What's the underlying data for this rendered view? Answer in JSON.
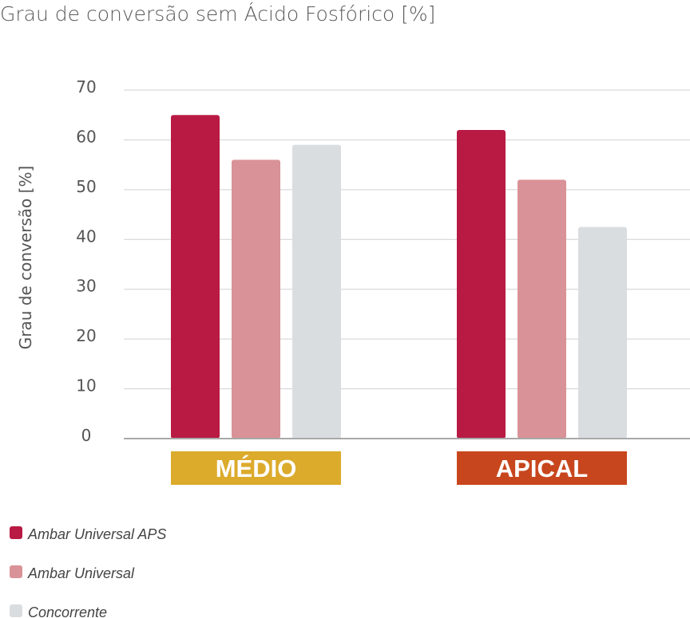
{
  "chart_data": {
    "type": "bar",
    "title": "Grau de conversão sem Ácido Fosfórico [%]",
    "ylabel": "Grau de conversão [%]",
    "xlabel": "",
    "ylim": [
      0,
      70
    ],
    "yticks": [
      0,
      10,
      20,
      30,
      40,
      50,
      60,
      70
    ],
    "grid": true,
    "categories": [
      "MÉDIO",
      "APICAL"
    ],
    "category_colors": [
      "#dcab2c",
      "#c8461d"
    ],
    "series": [
      {
        "name": "Ambar Universal APS",
        "color": "#b81a43",
        "values": [
          65,
          62
        ]
      },
      {
        "name": "Ambar Universal",
        "color": "#d99297",
        "values": [
          56,
          52
        ]
      },
      {
        "name": "Concorrente",
        "color": "#dadde0",
        "values": [
          59,
          42.5
        ]
      }
    ],
    "legend_position": "bottom-left"
  }
}
